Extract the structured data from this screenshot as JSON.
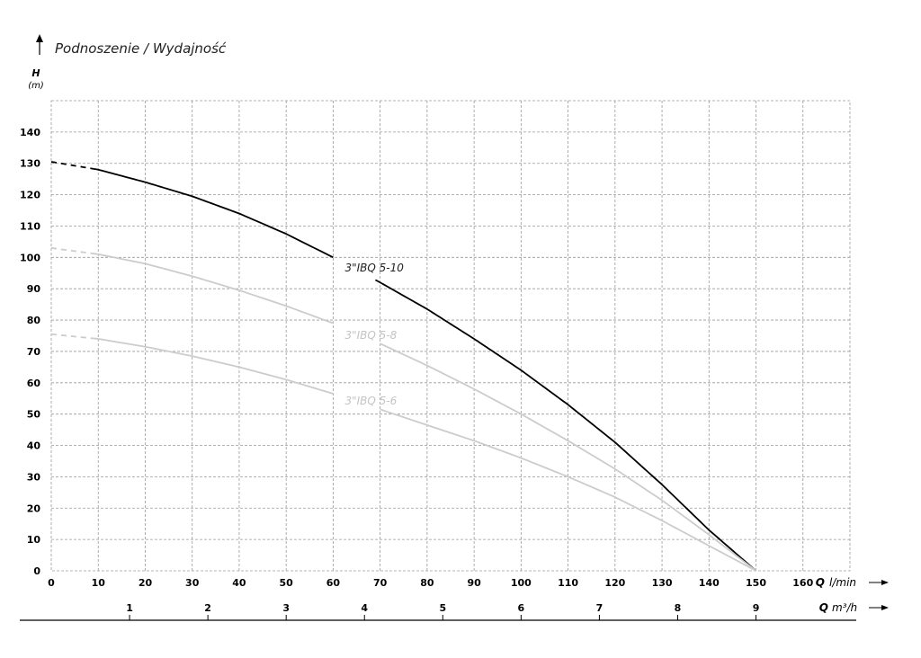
{
  "chart_data": {
    "type": "line",
    "title": "Podnoszenie / Wydajność",
    "ylabel": "H",
    "yunit": "(m)",
    "xlabel_q": "Q",
    "xunit_lmin": "l/min",
    "xunit_m3h": "m³/h",
    "xlim": [
      0,
      170
    ],
    "ylim": [
      0,
      150
    ],
    "x_ticks": [
      0,
      10,
      20,
      30,
      40,
      50,
      60,
      70,
      80,
      90,
      100,
      110,
      120,
      130,
      140,
      150,
      160
    ],
    "y_ticks": [
      0,
      10,
      20,
      30,
      40,
      50,
      60,
      70,
      80,
      90,
      100,
      110,
      120,
      130,
      140
    ],
    "m3h_ticks": [
      1,
      2,
      3,
      4,
      5,
      6,
      7,
      8,
      9
    ],
    "grid": true,
    "series": [
      {
        "name": "3\"IBQ 5-10",
        "color": "#000000",
        "x": [
          0,
          10,
          20,
          30,
          40,
          50,
          60,
          70,
          80,
          90,
          100,
          110,
          120,
          130,
          140,
          150
        ],
        "y": [
          130.5,
          128,
          124,
          119.5,
          114,
          107.5,
          100,
          92,
          83.5,
          74,
          64,
          53,
          41,
          27.5,
          13,
          0
        ],
        "dashed_until_x": 9
      },
      {
        "name": "3\"IBQ 5-8",
        "color": "#cccccc",
        "x": [
          0,
          10,
          20,
          30,
          40,
          50,
          60,
          70,
          80,
          90,
          100,
          110,
          120,
          130,
          140,
          150
        ],
        "y": [
          103,
          101,
          98,
          94,
          89.5,
          84.5,
          79,
          72.5,
          65.5,
          58,
          50,
          41.5,
          32.5,
          22.5,
          11.5,
          0
        ],
        "dashed_until_x": 9
      },
      {
        "name": "3\"IBQ 5-6",
        "color": "#cccccc",
        "x": [
          0,
          10,
          20,
          30,
          40,
          50,
          60,
          70,
          80,
          90,
          100,
          110,
          120,
          130,
          140,
          150
        ],
        "y": [
          75.5,
          74,
          71.5,
          68.5,
          65,
          61,
          56.5,
          51.5,
          46.5,
          41.5,
          36,
          30,
          23.5,
          16,
          8,
          0
        ],
        "dashed_until_x": 9
      }
    ]
  }
}
